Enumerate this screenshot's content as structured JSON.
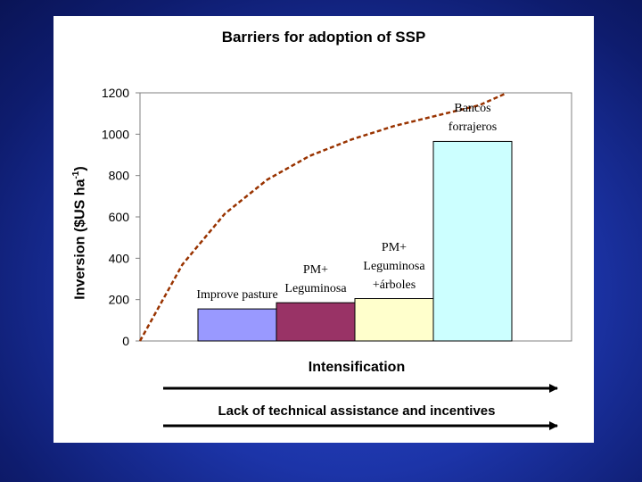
{
  "slide": {
    "background_color": "#1c34a8",
    "lack_label": "Lack of technical assistance and incentives"
  },
  "chart_data": {
    "type": "bar",
    "title": "Barriers for adoption of SSP",
    "xlabel": "Intensification",
    "ylabel": "Inversion ($US ha",
    "ylabel_sup": "-1",
    "ylabel_close": ")",
    "ylim": [
      0,
      1200
    ],
    "yticks": [
      "0",
      "200",
      "400",
      "600",
      "800",
      "1000",
      "1200"
    ],
    "grid": false,
    "categories": [
      [
        "Improve pasture"
      ],
      [
        "PM+",
        "Leguminosa"
      ],
      [
        "PM+",
        "Leguminosa",
        "+árboles"
      ],
      [
        "Bancos",
        "forrajeros"
      ]
    ],
    "values": [
      155,
      185,
      205,
      965
    ],
    "bar_colors": [
      "#9999ff",
      "#993366",
      "#ffffcc",
      "#ccffff"
    ],
    "trend_curve": {
      "style": "dashed",
      "color": "#993300",
      "x": [
        0,
        0.5,
        1,
        1.5,
        2,
        2.5,
        3,
        3.5,
        4,
        4.3
      ],
      "y": [
        0,
        370,
        615,
        780,
        895,
        975,
        1040,
        1090,
        1140,
        1195
      ]
    }
  }
}
